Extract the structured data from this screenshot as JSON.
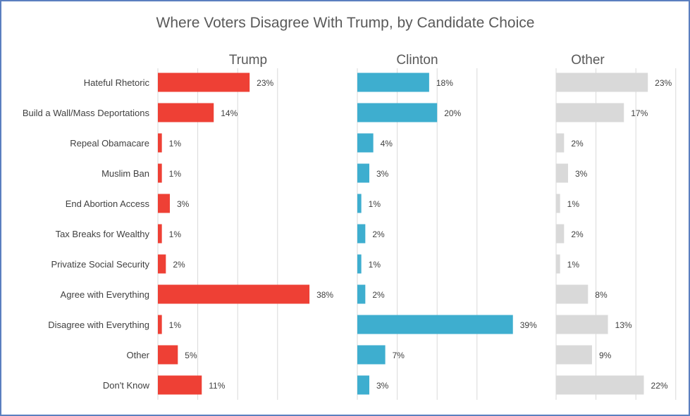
{
  "chart_data": {
    "type": "bar",
    "orientation": "horizontal",
    "title": "Where Voters Disagree With Trump, by Candidate Choice",
    "categories": [
      "Hateful Rhetoric",
      "Build a Wall/Mass Deportations",
      "Repeal Obamacare",
      "Muslim Ban",
      "End Abortion Access",
      "Tax Breaks for Wealthy",
      "Privatize Social Security",
      "Agree with Everything",
      "Disagree with Everything",
      "Other",
      "Don't Know"
    ],
    "series": [
      {
        "name": "Trump",
        "color": "#ee4035",
        "values": [
          23,
          14,
          1,
          1,
          3,
          1,
          2,
          38,
          1,
          5,
          11
        ]
      },
      {
        "name": "Clinton",
        "color": "#3eaecf",
        "values": [
          18,
          20,
          4,
          3,
          1,
          2,
          1,
          2,
          39,
          7,
          3
        ]
      },
      {
        "name": "Other",
        "color": "#d9d9d9",
        "values": [
          23,
          17,
          2,
          3,
          1,
          2,
          1,
          8,
          13,
          9,
          22
        ]
      }
    ],
    "value_format": "percent",
    "xlim": [
      0,
      45
    ],
    "gridlines": true,
    "legend": "none"
  }
}
